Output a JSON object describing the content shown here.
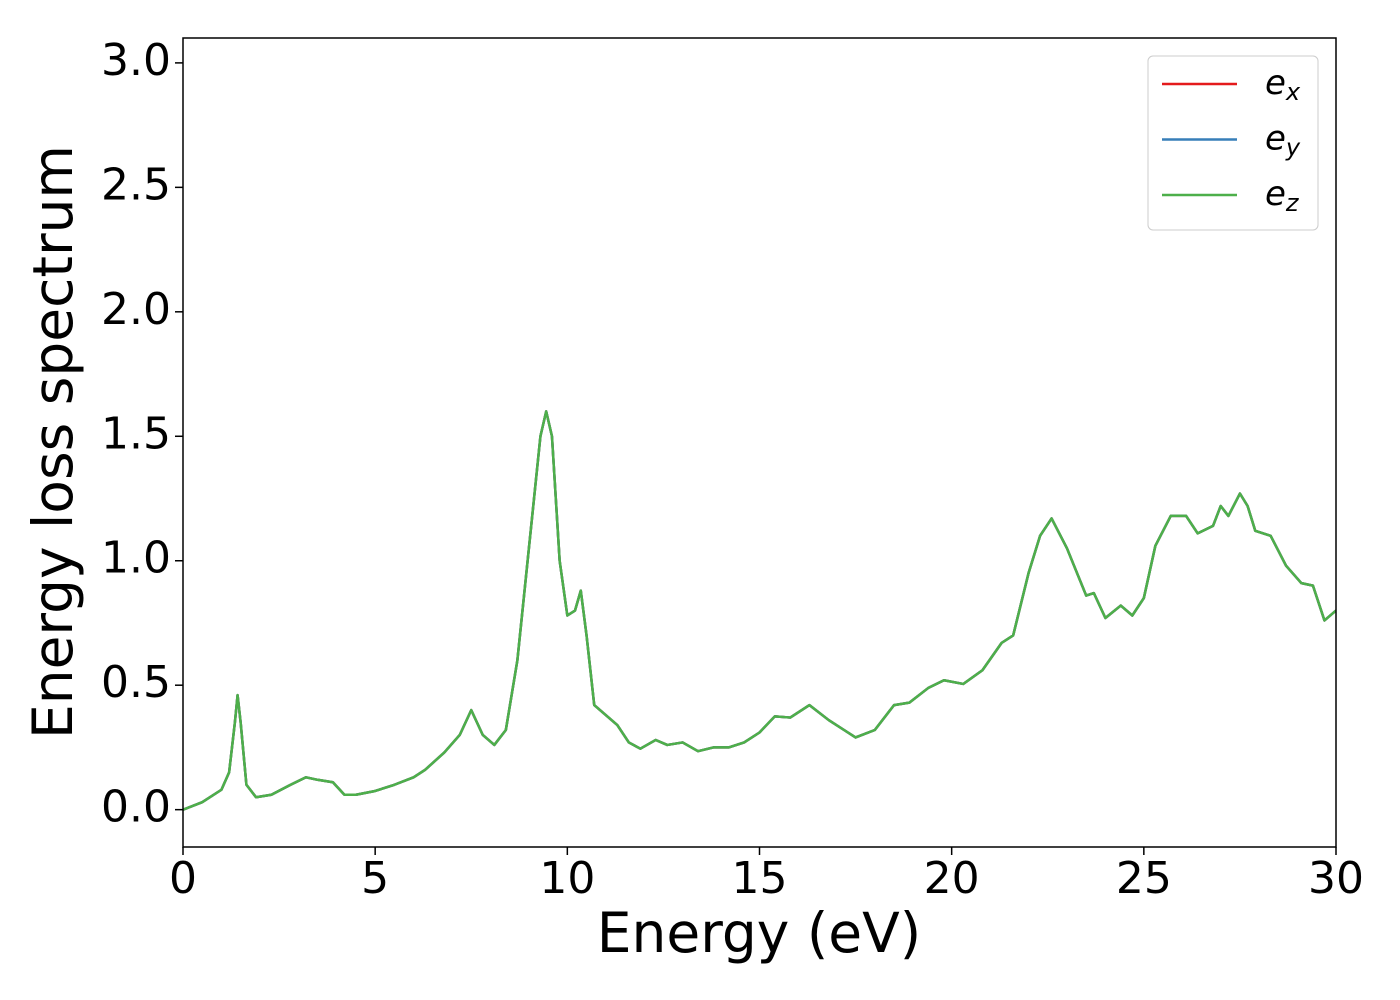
{
  "chart_data": {
    "type": "line",
    "xlabel": "Energy (eV)",
    "ylabel": "Energy loss spectrum",
    "x": [
      0,
      0.5,
      1.0,
      1.2,
      1.35,
      1.42,
      1.5,
      1.65,
      1.9,
      2.3,
      2.8,
      3.2,
      3.5,
      3.9,
      4.2,
      4.5,
      5.0,
      5.5,
      6.0,
      6.3,
      6.8,
      7.2,
      7.5,
      7.8,
      8.1,
      8.4,
      8.7,
      9.0,
      9.3,
      9.45,
      9.6,
      9.8,
      10.0,
      10.2,
      10.35,
      10.5,
      10.7,
      11.0,
      11.3,
      11.6,
      11.9,
      12.3,
      12.6,
      13.0,
      13.4,
      13.8,
      14.2,
      14.6,
      15.0,
      15.4,
      15.8,
      16.3,
      16.8,
      17.2,
      17.5,
      18.0,
      18.5,
      18.9,
      19.4,
      19.8,
      20.3,
      20.8,
      21.3,
      21.6,
      22.0,
      22.3,
      22.6,
      23.0,
      23.5,
      23.7,
      24.0,
      24.4,
      24.7,
      25.0,
      25.3,
      25.7,
      26.1,
      26.4,
      26.8,
      27.0,
      27.2,
      27.5,
      27.7,
      27.9,
      28.3,
      28.7,
      29.1,
      29.4,
      29.7,
      30.0
    ],
    "series": [
      {
        "name": "e_x",
        "color": "#e41a1c",
        "values": [
          0.0,
          0.03,
          0.08,
          0.15,
          0.35,
          0.46,
          0.35,
          0.1,
          0.05,
          0.06,
          0.1,
          0.13,
          0.12,
          0.11,
          0.06,
          0.06,
          0.075,
          0.1,
          0.13,
          0.16,
          0.23,
          0.3,
          0.4,
          0.3,
          0.26,
          0.32,
          0.6,
          1.05,
          1.5,
          1.6,
          1.5,
          1.0,
          0.78,
          0.8,
          0.88,
          0.7,
          0.42,
          0.38,
          0.34,
          0.27,
          0.245,
          0.28,
          0.26,
          0.27,
          0.235,
          0.25,
          0.25,
          0.27,
          0.31,
          0.375,
          0.37,
          0.42,
          0.36,
          0.32,
          0.29,
          0.32,
          0.42,
          0.43,
          0.49,
          0.52,
          0.505,
          0.56,
          0.67,
          0.7,
          0.95,
          1.1,
          1.17,
          1.05,
          0.86,
          0.87,
          0.77,
          0.82,
          0.78,
          0.85,
          1.06,
          1.18,
          1.18,
          1.11,
          1.14,
          1.22,
          1.18,
          1.27,
          1.22,
          1.12,
          1.1,
          0.98,
          0.91,
          0.9,
          0.76,
          0.8
        ]
      },
      {
        "name": "e_y",
        "color": "#377eb8",
        "values": [
          0.0,
          0.03,
          0.08,
          0.15,
          0.35,
          0.46,
          0.35,
          0.1,
          0.05,
          0.06,
          0.1,
          0.13,
          0.12,
          0.11,
          0.06,
          0.06,
          0.075,
          0.1,
          0.13,
          0.16,
          0.23,
          0.3,
          0.4,
          0.3,
          0.26,
          0.32,
          0.6,
          1.05,
          1.5,
          1.6,
          1.5,
          1.0,
          0.78,
          0.8,
          0.88,
          0.7,
          0.42,
          0.38,
          0.34,
          0.27,
          0.245,
          0.28,
          0.26,
          0.27,
          0.235,
          0.25,
          0.25,
          0.27,
          0.31,
          0.375,
          0.37,
          0.42,
          0.36,
          0.32,
          0.29,
          0.32,
          0.42,
          0.43,
          0.49,
          0.52,
          0.505,
          0.56,
          0.67,
          0.7,
          0.95,
          1.1,
          1.17,
          1.05,
          0.86,
          0.87,
          0.77,
          0.82,
          0.78,
          0.85,
          1.06,
          1.18,
          1.18,
          1.11,
          1.14,
          1.22,
          1.18,
          1.27,
          1.22,
          1.12,
          1.1,
          0.98,
          0.91,
          0.9,
          0.76,
          0.8
        ]
      },
      {
        "name": "e_z",
        "color": "#4daf4a",
        "values": [
          0.0,
          0.03,
          0.08,
          0.15,
          0.35,
          0.46,
          0.35,
          0.1,
          0.05,
          0.06,
          0.1,
          0.13,
          0.12,
          0.11,
          0.06,
          0.06,
          0.075,
          0.1,
          0.13,
          0.16,
          0.23,
          0.3,
          0.4,
          0.3,
          0.26,
          0.32,
          0.6,
          1.05,
          1.5,
          1.6,
          1.5,
          1.0,
          0.78,
          0.8,
          0.88,
          0.7,
          0.42,
          0.38,
          0.34,
          0.27,
          0.245,
          0.28,
          0.26,
          0.27,
          0.235,
          0.25,
          0.25,
          0.27,
          0.31,
          0.375,
          0.37,
          0.42,
          0.36,
          0.32,
          0.29,
          0.32,
          0.42,
          0.43,
          0.49,
          0.52,
          0.505,
          0.56,
          0.67,
          0.7,
          0.95,
          1.1,
          1.17,
          1.05,
          0.86,
          0.87,
          0.77,
          0.82,
          0.78,
          0.85,
          1.06,
          1.18,
          1.18,
          1.11,
          1.14,
          1.22,
          1.18,
          1.27,
          1.22,
          1.12,
          1.1,
          0.98,
          0.91,
          0.9,
          0.76,
          0.8
        ]
      }
    ],
    "xlim": [
      0,
      30
    ],
    "xticks": [
      0,
      5,
      10,
      15,
      20,
      25,
      30
    ],
    "ylim": [
      -0.15,
      3.1
    ],
    "yticks": [
      {
        "value": 0,
        "label": "0.0"
      },
      0.5,
      {
        "value": 1,
        "label": "1.0"
      },
      1.5,
      {
        "value": 2,
        "label": "2.0"
      },
      2.5,
      {
        "value": 3,
        "label": "3.0"
      }
    ],
    "legend": "upper right",
    "grid": false
  }
}
